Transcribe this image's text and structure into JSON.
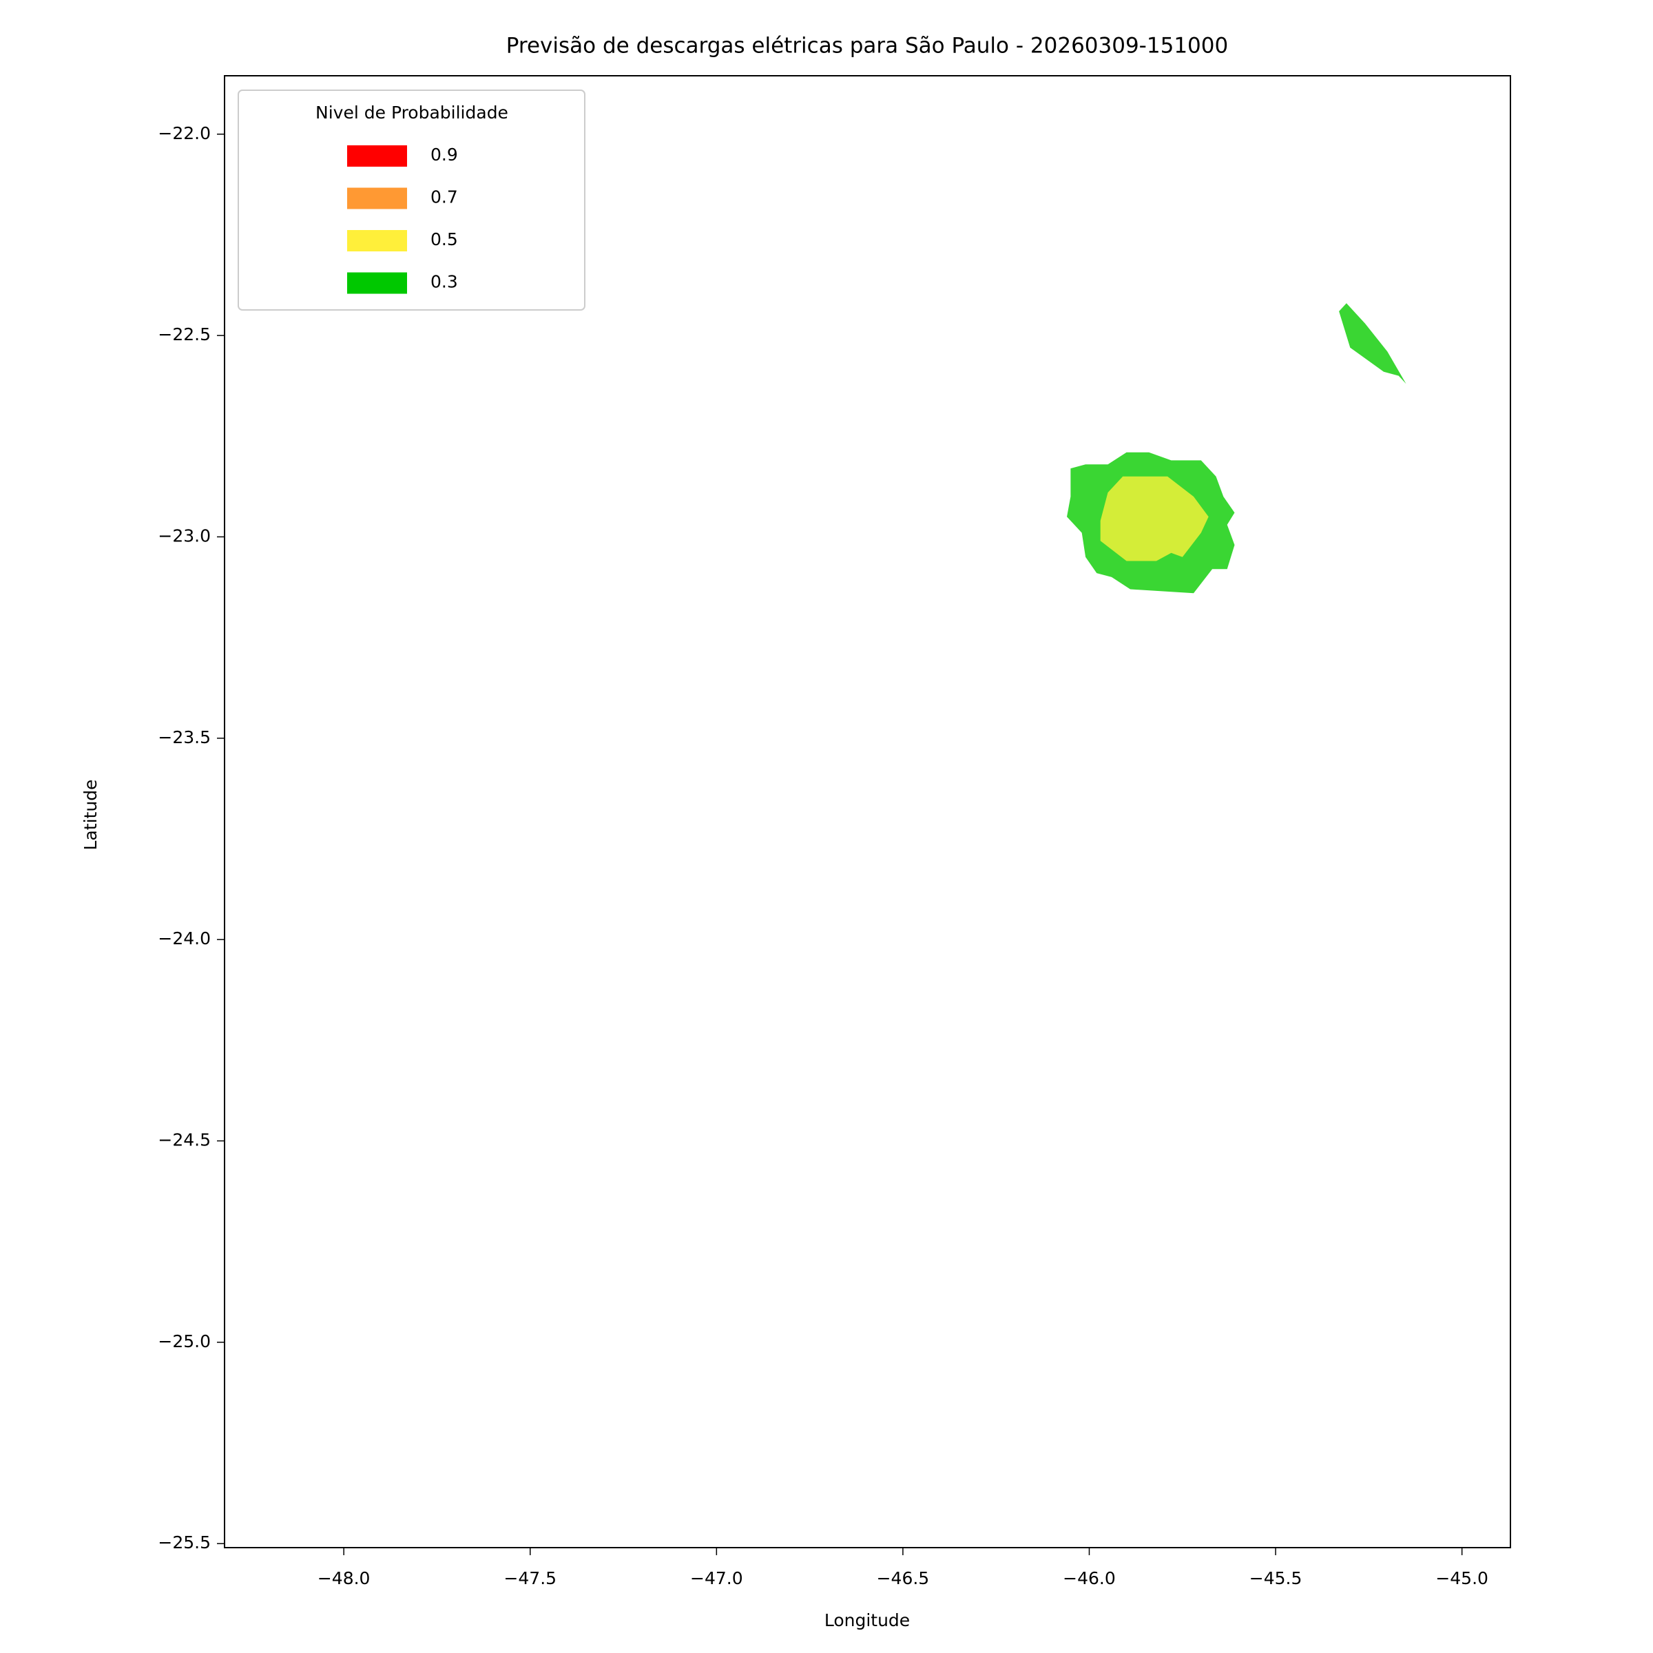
{
  "chart_data": {
    "type": "contour",
    "title": "Previsão de descargas elétricas para São Paulo - 20260309-151000",
    "x_label": "Longitude",
    "y_label": "Latitude",
    "xlim": [
      -48.32,
      -44.87
    ],
    "ylim": [
      -25.51,
      -21.855
    ],
    "xticks": [
      {
        "value": -48.0,
        "label": "−48.0"
      },
      {
        "value": -47.5,
        "label": "−47.5"
      },
      {
        "value": -47.0,
        "label": "−47.0"
      },
      {
        "value": -46.5,
        "label": "−46.5"
      },
      {
        "value": -46.0,
        "label": "−46.0"
      },
      {
        "value": -45.5,
        "label": "−45.5"
      },
      {
        "value": -45.0,
        "label": "−45.0"
      }
    ],
    "yticks": [
      {
        "value": -22.0,
        "label": "−22.0"
      },
      {
        "value": -22.5,
        "label": "−22.5"
      },
      {
        "value": -23.0,
        "label": "−23.0"
      },
      {
        "value": -23.5,
        "label": "−23.5"
      },
      {
        "value": -24.0,
        "label": "−24.0"
      },
      {
        "value": -24.5,
        "label": "−24.5"
      },
      {
        "value": -25.0,
        "label": "−25.0"
      },
      {
        "value": -25.5,
        "label": "−25.5"
      }
    ],
    "legend": {
      "title": "Nivel de Probabilidade",
      "loc": "upper left",
      "entries": [
        {
          "name": "0.9",
          "color": "#ff0000"
        },
        {
          "name": "0.7",
          "color": "#ff9933"
        },
        {
          "name": "0.5",
          "color": "#ffef3a"
        },
        {
          "name": "0.3",
          "color": "#00c800"
        }
      ]
    },
    "regions": [
      {
        "color": "#3ad633",
        "x": [
          -46.05,
          -46.01,
          -45.95,
          -45.9,
          -45.84,
          -45.78,
          -45.7,
          -45.66,
          -45.64,
          -45.61,
          -45.63,
          -45.61,
          -45.63,
          -45.67,
          -45.72,
          -45.89,
          -45.94,
          -45.98,
          -46.01,
          -46.02,
          -46.06,
          -46.05
        ],
        "y": [
          -22.83,
          -22.82,
          -22.82,
          -22.79,
          -22.79,
          -22.81,
          -22.81,
          -22.85,
          -22.9,
          -22.94,
          -22.97,
          -23.02,
          -23.08,
          -23.08,
          -23.14,
          -23.13,
          -23.1,
          -23.09,
          -23.05,
          -22.99,
          -22.95,
          -22.9
        ]
      },
      {
        "color": "#d4ed38",
        "x": [
          -45.95,
          -45.91,
          -45.79,
          -45.72,
          -45.68,
          -45.7,
          -45.75,
          -45.78,
          -45.82,
          -45.9,
          -45.97,
          -45.97
        ],
        "y": [
          -22.89,
          -22.85,
          -22.85,
          -22.9,
          -22.95,
          -22.99,
          -23.05,
          -23.04,
          -23.06,
          -23.06,
          -23.01,
          -22.96
        ]
      },
      {
        "color": "#3ad633",
        "x": [
          -45.33,
          -45.31,
          -45.26,
          -45.2,
          -45.15,
          -45.17,
          -45.21,
          -45.3
        ],
        "y": [
          -22.44,
          -22.42,
          -22.47,
          -22.54,
          -22.62,
          -22.6,
          -22.59,
          -22.53
        ]
      }
    ]
  }
}
